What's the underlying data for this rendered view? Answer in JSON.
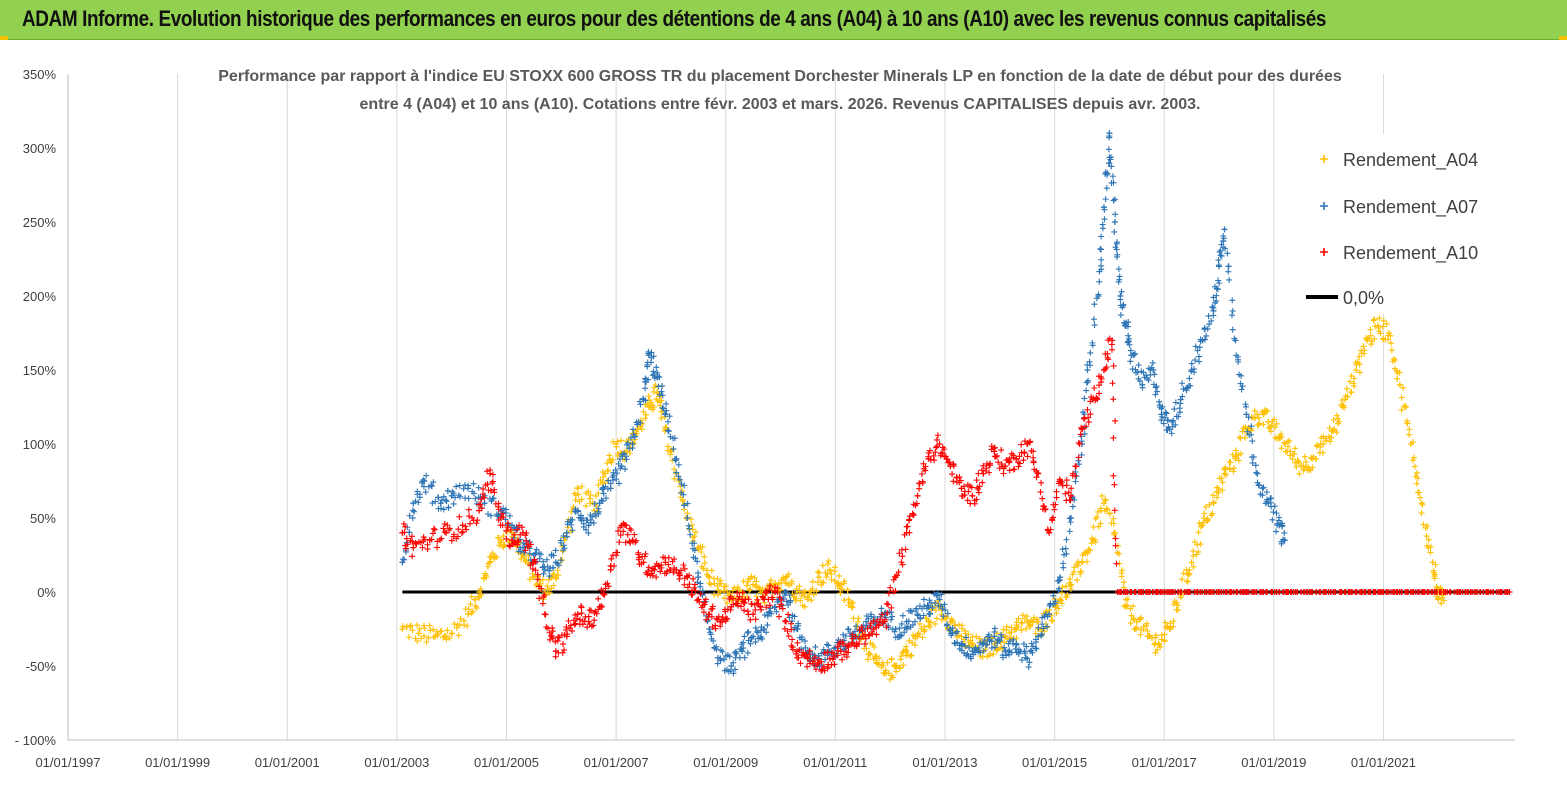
{
  "banner": {
    "title": "ADAM Informe. Evolution historique des performances en euros pour des détentions de 4 ans (A04) à 10 ans (A10) avec les revenus connus capitalisés"
  },
  "colors": {
    "banner": "#92d050",
    "A04": "#ffc000",
    "A07": "#2e75b6",
    "A10": "#ff0000",
    "zero": "#000000",
    "corner": "#f2c200"
  },
  "chart_data": {
    "type": "scatter",
    "title_line1": "Performance par rapport à l'indice EU STOXX 600 GROSS TR  du placement Dorchester Minerals LP en fonction de la date de début pour des durées",
    "title_line2": "entre 4 (A04) et 10 ans (A10). Cotations entre févr. 2003 et mars. 2026. Revenus CAPITALISES depuis avr. 2003.",
    "xlabel": "",
    "ylabel": "",
    "x_range": [
      1997.0,
      2023.4
    ],
    "ylim": [
      -100,
      350
    ],
    "y_ticks": [
      {
        "value": 350,
        "label": "350%"
      },
      {
        "value": 300,
        "label": "300%"
      },
      {
        "value": 250,
        "label": "250%"
      },
      {
        "value": 200,
        "label": "200%"
      },
      {
        "value": 150,
        "label": "150%"
      },
      {
        "value": 100,
        "label": "100%"
      },
      {
        "value": 50,
        "label": "50%"
      },
      {
        "value": 0,
        "label": "0%"
      },
      {
        "value": -50,
        "label": "-50%"
      },
      {
        "value": -100,
        "label": "- 100%"
      }
    ],
    "x_ticks": [
      {
        "value": 1997,
        "label": "01/01/1997"
      },
      {
        "value": 1999,
        "label": "01/01/1999"
      },
      {
        "value": 2001,
        "label": "01/01/2001"
      },
      {
        "value": 2003,
        "label": "01/01/2003"
      },
      {
        "value": 2005,
        "label": "01/01/2005"
      },
      {
        "value": 2007,
        "label": "01/01/2007"
      },
      {
        "value": 2009,
        "label": "01/01/2009"
      },
      {
        "value": 2011,
        "label": "01/01/2011"
      },
      {
        "value": 2013,
        "label": "01/01/2013"
      },
      {
        "value": 2015,
        "label": "01/01/2015"
      },
      {
        "value": 2017,
        "label": "01/01/2017"
      },
      {
        "value": 2019,
        "label": "01/01/2019"
      },
      {
        "value": 2021,
        "label": "01/01/2021"
      }
    ],
    "legend_position": "top-right",
    "series": [
      {
        "name": "Rendement_A04",
        "marker": "plus",
        "points": [
          [
            2003.1,
            -25
          ],
          [
            2003.4,
            -28
          ],
          [
            2003.7,
            -30
          ],
          [
            2004.0,
            -28
          ],
          [
            2004.3,
            -15
          ],
          [
            2004.5,
            0
          ],
          [
            2004.7,
            20
          ],
          [
            2004.9,
            35
          ],
          [
            2005.1,
            40
          ],
          [
            2005.3,
            25
          ],
          [
            2005.5,
            10
          ],
          [
            2005.7,
            0
          ],
          [
            2005.9,
            10
          ],
          [
            2006.1,
            40
          ],
          [
            2006.3,
            70
          ],
          [
            2006.6,
            55
          ],
          [
            2006.8,
            80
          ],
          [
            2007.0,
            100
          ],
          [
            2007.2,
            95
          ],
          [
            2007.4,
            110
          ],
          [
            2007.6,
            125
          ],
          [
            2007.75,
            135
          ],
          [
            2007.9,
            110
          ],
          [
            2008.1,
            80
          ],
          [
            2008.3,
            50
          ],
          [
            2008.5,
            30
          ],
          [
            2008.7,
            10
          ],
          [
            2008.9,
            0
          ],
          [
            2009.1,
            -5
          ],
          [
            2009.3,
            0
          ],
          [
            2009.5,
            5
          ],
          [
            2009.7,
            -5
          ],
          [
            2009.9,
            5
          ],
          [
            2010.1,
            10
          ],
          [
            2010.3,
            0
          ],
          [
            2010.5,
            -5
          ],
          [
            2010.7,
            10
          ],
          [
            2010.9,
            15
          ],
          [
            2011.1,
            5
          ],
          [
            2011.3,
            -10
          ],
          [
            2011.5,
            -30
          ],
          [
            2011.7,
            -45
          ],
          [
            2011.9,
            -55
          ],
          [
            2012.1,
            -50
          ],
          [
            2012.3,
            -40
          ],
          [
            2012.5,
            -30
          ],
          [
            2012.7,
            -20
          ],
          [
            2012.9,
            -10
          ],
          [
            2013.1,
            -20
          ],
          [
            2013.3,
            -30
          ],
          [
            2013.5,
            -35
          ],
          [
            2013.7,
            -40
          ],
          [
            2013.9,
            -35
          ],
          [
            2014.1,
            -30
          ],
          [
            2014.3,
            -25
          ],
          [
            2014.5,
            -20
          ],
          [
            2014.7,
            -25
          ],
          [
            2014.9,
            -15
          ],
          [
            2015.1,
            -5
          ],
          [
            2015.3,
            5
          ],
          [
            2015.5,
            20
          ],
          [
            2015.7,
            35
          ],
          [
            2015.9,
            60
          ],
          [
            2016.1,
            40
          ],
          [
            2016.3,
            -10
          ],
          [
            2016.5,
            -20
          ],
          [
            2016.7,
            -30
          ],
          [
            2016.9,
            -35
          ],
          [
            2017.1,
            -25
          ],
          [
            2017.3,
            0
          ],
          [
            2017.5,
            20
          ],
          [
            2017.7,
            45
          ],
          [
            2017.9,
            60
          ],
          [
            2018.1,
            80
          ],
          [
            2018.3,
            90
          ],
          [
            2018.5,
            110
          ],
          [
            2018.7,
            120
          ],
          [
            2018.9,
            115
          ],
          [
            2019.1,
            105
          ],
          [
            2019.3,
            95
          ],
          [
            2019.5,
            85
          ],
          [
            2019.7,
            90
          ],
          [
            2019.9,
            100
          ],
          [
            2020.1,
            110
          ],
          [
            2020.3,
            130
          ],
          [
            2020.5,
            150
          ],
          [
            2020.7,
            170
          ],
          [
            2020.9,
            180
          ],
          [
            2021.1,
            175
          ],
          [
            2021.3,
            140
          ],
          [
            2021.5,
            100
          ],
          [
            2021.7,
            60
          ],
          [
            2021.9,
            20
          ],
          [
            2022.0,
            -5
          ],
          [
            2022.1,
            0
          ]
        ]
      },
      {
        "name": "Rendement_A07",
        "marker": "plus",
        "points": [
          [
            2003.1,
            20
          ],
          [
            2003.3,
            60
          ],
          [
            2003.5,
            75
          ],
          [
            2003.8,
            60
          ],
          [
            2004.0,
            65
          ],
          [
            2004.3,
            70
          ],
          [
            2004.6,
            60
          ],
          [
            2004.9,
            55
          ],
          [
            2005.1,
            45
          ],
          [
            2005.3,
            30
          ],
          [
            2005.5,
            25
          ],
          [
            2005.7,
            15
          ],
          [
            2005.9,
            20
          ],
          [
            2006.1,
            40
          ],
          [
            2006.3,
            55
          ],
          [
            2006.5,
            45
          ],
          [
            2006.7,
            60
          ],
          [
            2006.9,
            70
          ],
          [
            2007.1,
            85
          ],
          [
            2007.3,
            100
          ],
          [
            2007.5,
            130
          ],
          [
            2007.6,
            160
          ],
          [
            2007.75,
            145
          ],
          [
            2007.9,
            120
          ],
          [
            2008.1,
            90
          ],
          [
            2008.3,
            50
          ],
          [
            2008.5,
            10
          ],
          [
            2008.7,
            -25
          ],
          [
            2008.9,
            -45
          ],
          [
            2009.1,
            -50
          ],
          [
            2009.3,
            -40
          ],
          [
            2009.5,
            -30
          ],
          [
            2009.7,
            -25
          ],
          [
            2009.9,
            -10
          ],
          [
            2010.1,
            0
          ],
          [
            2010.3,
            -25
          ],
          [
            2010.5,
            -40
          ],
          [
            2010.7,
            -45
          ],
          [
            2010.9,
            -40
          ],
          [
            2011.1,
            -35
          ],
          [
            2011.3,
            -30
          ],
          [
            2011.5,
            -25
          ],
          [
            2011.7,
            -20
          ],
          [
            2011.9,
            -15
          ],
          [
            2012.1,
            -25
          ],
          [
            2012.3,
            -20
          ],
          [
            2012.5,
            -15
          ],
          [
            2012.7,
            -10
          ],
          [
            2012.9,
            -5
          ],
          [
            2013.1,
            -25
          ],
          [
            2013.3,
            -35
          ],
          [
            2013.5,
            -40
          ],
          [
            2013.7,
            -35
          ],
          [
            2013.9,
            -30
          ],
          [
            2014.1,
            -40
          ],
          [
            2014.3,
            -35
          ],
          [
            2014.5,
            -45
          ],
          [
            2014.7,
            -30
          ],
          [
            2014.9,
            -15
          ],
          [
            2015.1,
            10
          ],
          [
            2015.3,
            50
          ],
          [
            2015.5,
            100
          ],
          [
            2015.6,
            150
          ],
          [
            2015.8,
            200
          ],
          [
            2015.9,
            260
          ],
          [
            2016.0,
            310
          ],
          [
            2016.1,
            250
          ],
          [
            2016.2,
            200
          ],
          [
            2016.3,
            180
          ],
          [
            2016.4,
            160
          ],
          [
            2016.6,
            140
          ],
          [
            2016.8,
            150
          ],
          [
            2016.95,
            120
          ],
          [
            2017.1,
            110
          ],
          [
            2017.3,
            130
          ],
          [
            2017.5,
            150
          ],
          [
            2017.7,
            170
          ],
          [
            2017.9,
            190
          ],
          [
            2018.0,
            220
          ],
          [
            2018.1,
            245
          ],
          [
            2018.3,
            170
          ],
          [
            2018.5,
            120
          ],
          [
            2018.7,
            80
          ],
          [
            2018.9,
            60
          ],
          [
            2019.1,
            45
          ],
          [
            2019.2,
            35
          ]
        ]
      },
      {
        "name": "Rendement_A10",
        "marker": "plus",
        "points": [
          [
            2003.1,
            40
          ],
          [
            2003.3,
            30
          ],
          [
            2003.6,
            35
          ],
          [
            2003.9,
            40
          ],
          [
            2004.2,
            45
          ],
          [
            2004.5,
            55
          ],
          [
            2004.7,
            80
          ],
          [
            2004.9,
            50
          ],
          [
            2005.1,
            35
          ],
          [
            2005.3,
            40
          ],
          [
            2005.5,
            20
          ],
          [
            2005.7,
            -15
          ],
          [
            2005.9,
            -40
          ],
          [
            2006.1,
            -30
          ],
          [
            2006.3,
            -15
          ],
          [
            2006.5,
            -20
          ],
          [
            2006.7,
            -10
          ],
          [
            2006.9,
            15
          ],
          [
            2007.1,
            45
          ],
          [
            2007.3,
            35
          ],
          [
            2007.5,
            20
          ],
          [
            2007.7,
            15
          ],
          [
            2007.9,
            20
          ],
          [
            2008.1,
            15
          ],
          [
            2008.3,
            10
          ],
          [
            2008.5,
            -5
          ],
          [
            2008.7,
            -15
          ],
          [
            2008.9,
            -20
          ],
          [
            2009.1,
            -10
          ],
          [
            2009.3,
            -5
          ],
          [
            2009.5,
            -15
          ],
          [
            2009.7,
            -5
          ],
          [
            2009.9,
            0
          ],
          [
            2010.1,
            -20
          ],
          [
            2010.3,
            -40
          ],
          [
            2010.5,
            -45
          ],
          [
            2010.7,
            -48
          ],
          [
            2010.9,
            -45
          ],
          [
            2011.1,
            -40
          ],
          [
            2011.3,
            -35
          ],
          [
            2011.5,
            -30
          ],
          [
            2011.7,
            -25
          ],
          [
            2011.9,
            -20
          ],
          [
            2012.1,
            10
          ],
          [
            2012.3,
            40
          ],
          [
            2012.5,
            65
          ],
          [
            2012.7,
            90
          ],
          [
            2012.9,
            100
          ],
          [
            2013.1,
            85
          ],
          [
            2013.3,
            70
          ],
          [
            2013.5,
            65
          ],
          [
            2013.7,
            80
          ],
          [
            2013.9,
            95
          ],
          [
            2014.1,
            85
          ],
          [
            2014.3,
            90
          ],
          [
            2014.5,
            100
          ],
          [
            2014.7,
            80
          ],
          [
            2014.9,
            40
          ],
          [
            2015.1,
            75
          ],
          [
            2015.3,
            65
          ],
          [
            2015.5,
            110
          ],
          [
            2015.7,
            130
          ],
          [
            2015.9,
            150
          ],
          [
            2016.05,
            170
          ],
          [
            2016.15,
            0
          ],
          [
            2016.4,
            0
          ],
          [
            2016.7,
            0
          ],
          [
            2017.0,
            0
          ],
          [
            2017.3,
            0
          ],
          [
            2017.6,
            0
          ],
          [
            2017.9,
            0
          ],
          [
            2018.2,
            0
          ],
          [
            2018.5,
            0
          ],
          [
            2018.8,
            0
          ],
          [
            2019.1,
            0
          ],
          [
            2019.4,
            0
          ],
          [
            2019.7,
            0
          ],
          [
            2020.0,
            0
          ],
          [
            2020.3,
            0
          ],
          [
            2020.6,
            0
          ],
          [
            2020.9,
            0
          ],
          [
            2021.2,
            0
          ],
          [
            2021.5,
            0
          ],
          [
            2021.8,
            0
          ],
          [
            2022.1,
            0
          ],
          [
            2022.4,
            0
          ],
          [
            2022.7,
            0
          ],
          [
            2023.0,
            0
          ],
          [
            2023.3,
            0
          ]
        ]
      },
      {
        "name": "0,0%",
        "marker": "line",
        "points": [
          [
            2003.1,
            0
          ],
          [
            2023.3,
            0
          ]
        ]
      }
    ]
  }
}
